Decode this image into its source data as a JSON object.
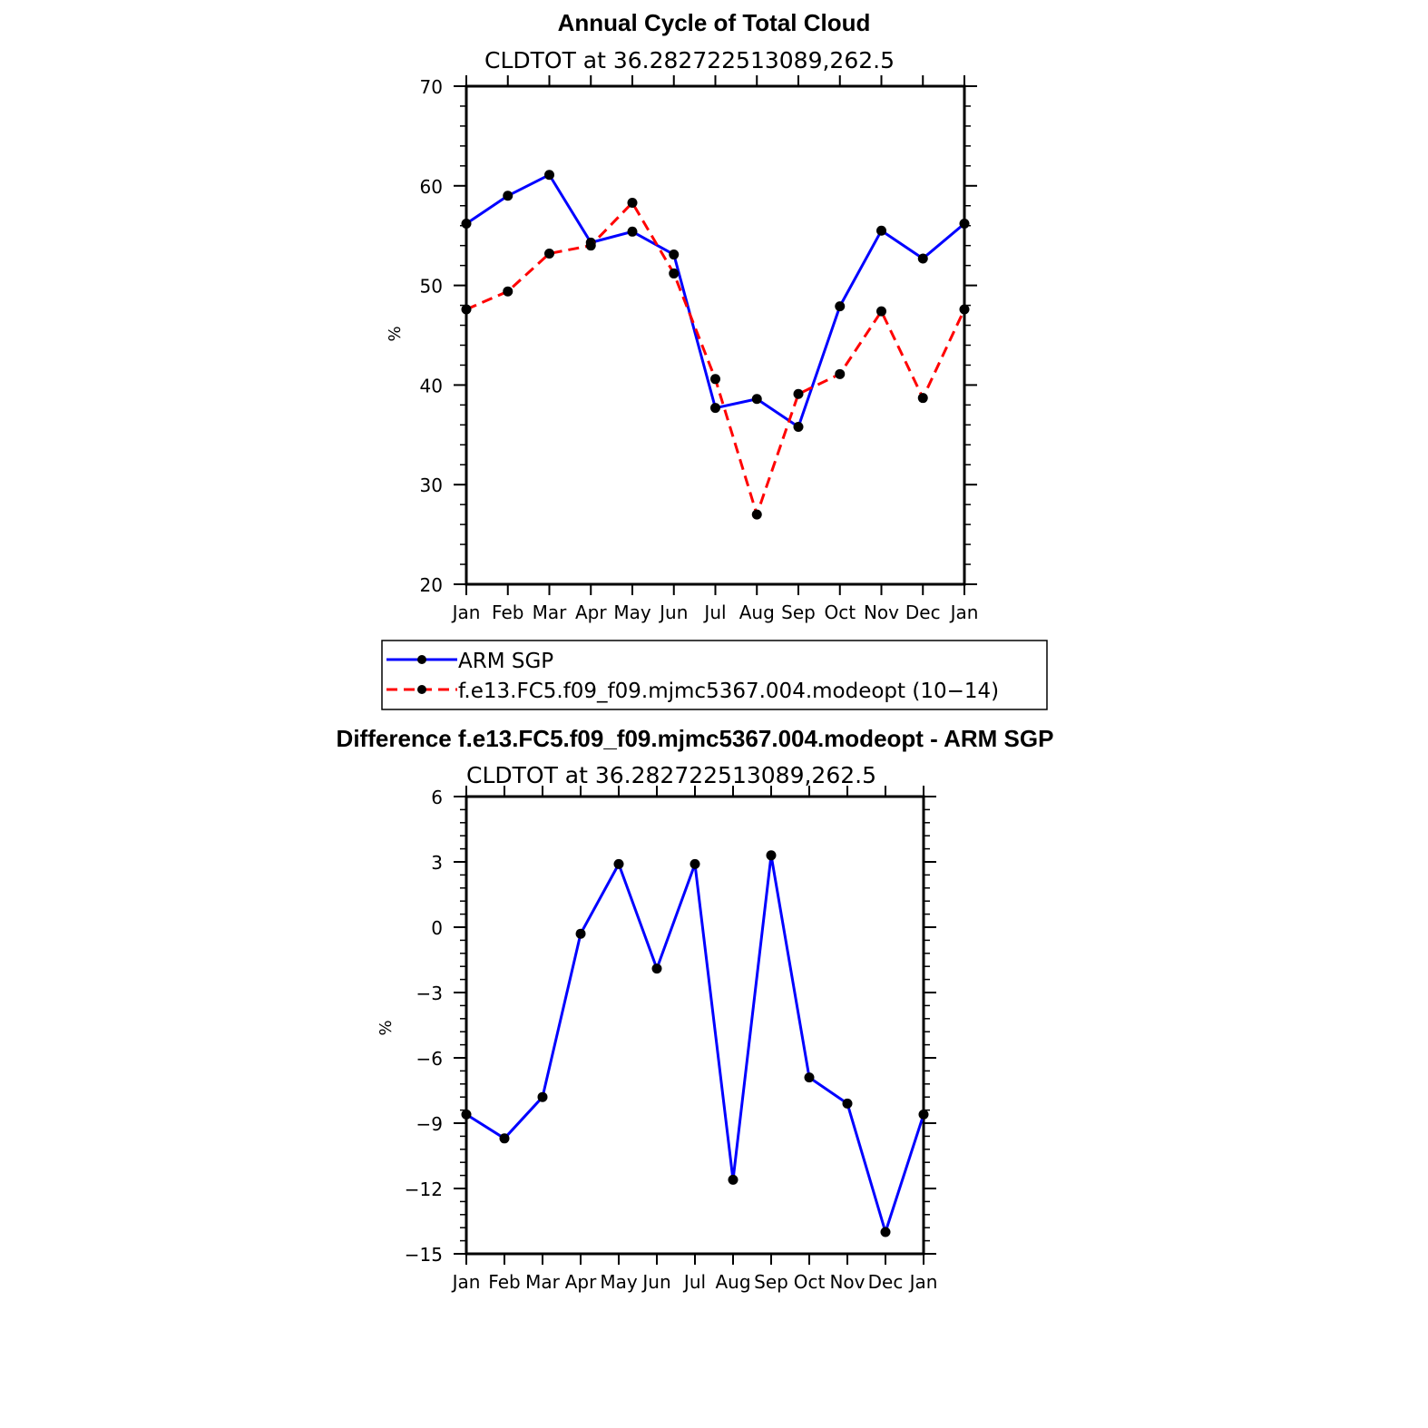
{
  "chart_data": [
    {
      "type": "line",
      "title": "Annual Cycle of Total Cloud",
      "subtitle": "CLDTOT at 36.282722513089,262.5",
      "ylabel": "%",
      "ylim": [
        20,
        70
      ],
      "yticks": [
        "20",
        "30",
        "40",
        "50",
        "60",
        "70"
      ],
      "categories": [
        "Jan",
        "Feb",
        "Mar",
        "Apr",
        "May",
        "Jun",
        "Jul",
        "Aug",
        "Sep",
        "Oct",
        "Nov",
        "Dec",
        "Jan"
      ],
      "grid": false,
      "legend_position": "below",
      "series": [
        {
          "name": "ARM SGP",
          "color": "#0000ff",
          "dashed": false,
          "values": [
            56.2,
            59.0,
            61.1,
            54.3,
            55.4,
            53.1,
            37.7,
            38.6,
            35.8,
            47.9,
            55.5,
            52.7,
            56.2
          ]
        },
        {
          "name": "f.e13.FC5.f09_f09.mjmc5367.004.modeopt (10−14)",
          "color": "#ff0000",
          "dashed": true,
          "values": [
            47.6,
            49.4,
            53.2,
            54.0,
            58.3,
            51.2,
            40.6,
            27.0,
            39.1,
            41.1,
            47.4,
            38.7,
            47.6
          ]
        }
      ]
    },
    {
      "type": "line",
      "title": "Difference f.e13.FC5.f09_f09.mjmc5367.004.modeopt - ARM SGP",
      "subtitle": "CLDTOT at 36.282722513089,262.5",
      "ylabel": "%",
      "ylim": [
        -15,
        6
      ],
      "yticks": [
        "−15",
        "−12",
        "−9",
        "−6",
        "−3",
        "0",
        "3",
        "6"
      ],
      "categories": [
        "Jan",
        "Feb",
        "Mar",
        "Apr",
        "May",
        "Jun",
        "Jul",
        "Aug",
        "Sep",
        "Oct",
        "Nov",
        "Dec",
        "Jan"
      ],
      "grid": false,
      "series": [
        {
          "color": "#0000ff",
          "dashed": false,
          "values": [
            -8.6,
            -9.7,
            -7.8,
            -0.3,
            2.9,
            -1.9,
            2.9,
            -11.6,
            3.3,
            -6.9,
            -8.1,
            -14.0,
            -8.6
          ]
        }
      ]
    }
  ]
}
